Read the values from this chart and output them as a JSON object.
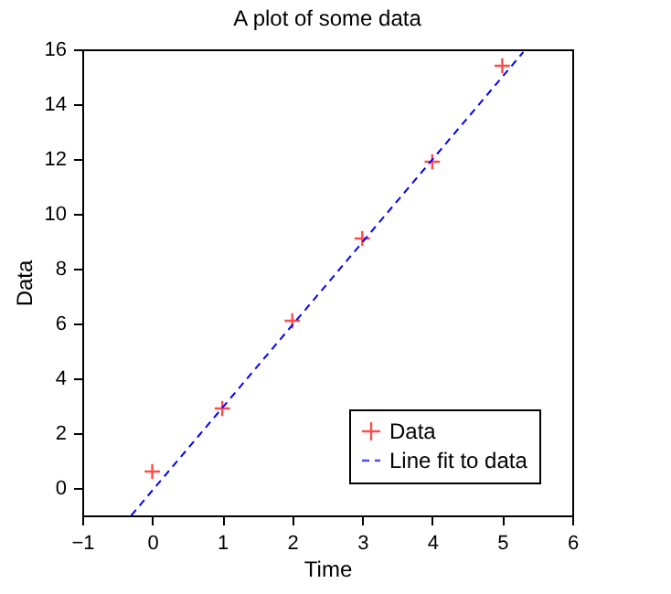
{
  "chart_data": {
    "type": "scatter",
    "title": "A plot of some data",
    "xlabel": "Time",
    "ylabel": "Data",
    "xlim": [
      -1,
      6
    ],
    "xticks": [
      -1,
      0,
      1,
      2,
      3,
      4,
      5,
      6
    ],
    "ylim": [
      -1,
      16
    ],
    "yticks": [
      0,
      2,
      4,
      6,
      8,
      10,
      12,
      14,
      16
    ],
    "grid": false,
    "legend": "bottom right",
    "series": [
      {
        "name": "Data",
        "color": "#ff0000",
        "marker": "cross",
        "x": [
          0,
          1,
          2,
          3,
          4,
          5
        ],
        "values": [
          0.6,
          2.9,
          6.1,
          9.1,
          11.9,
          15.4
        ]
      },
      {
        "name": "Line fit to data",
        "color": "#0000ff",
        "type": "line",
        "line_style": "dashed",
        "marker": "none",
        "x": [
          -0.3,
          5.3
        ],
        "values": [
          -1,
          15.9
        ]
      }
    ]
  }
}
